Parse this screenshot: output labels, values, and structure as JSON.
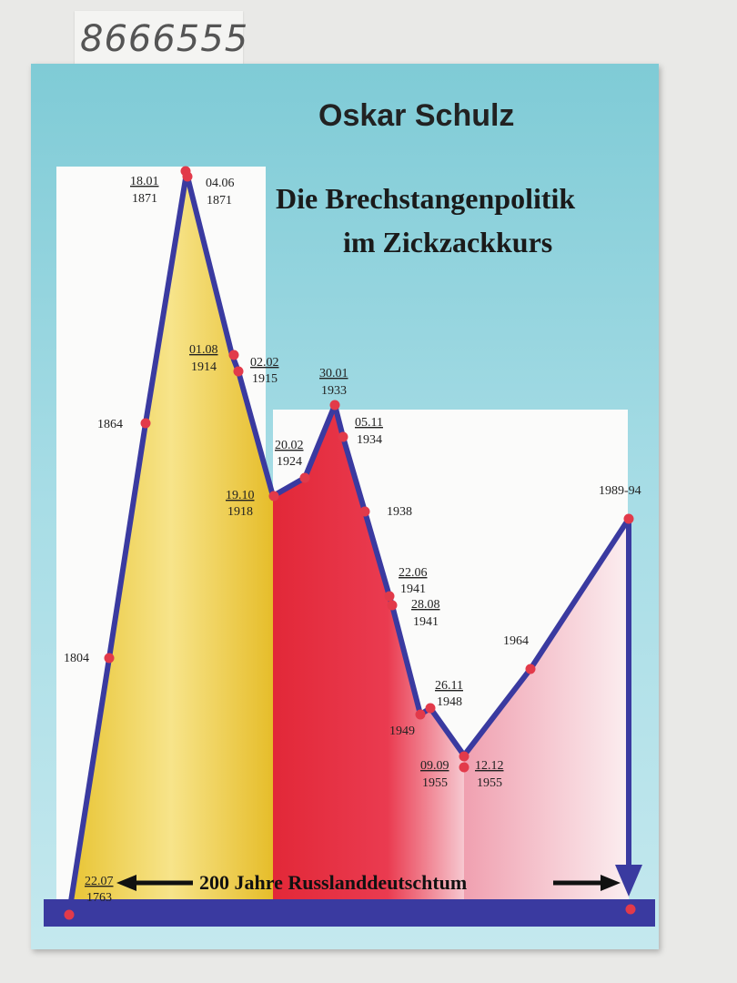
{
  "sticker": {
    "code": "8666555"
  },
  "cover": {
    "author": "Oskar Schulz",
    "title_line1": "Die Brechstangenpolitik",
    "title_line2": "im Zickzackkurs",
    "banner": "200 Jahre Russlanddeutschtum"
  },
  "labels": {
    "l_2207": "22.07",
    "l_1763": "1763",
    "l_1804": "1804",
    "l_1864": "1864",
    "l_1801": "18.01",
    "l_1871a": "1871",
    "l_0406": "04.06",
    "l_1871b": "1871",
    "l_0108": "01.08",
    "l_1914": "1914",
    "l_0202": "02.02",
    "l_1915": "1915",
    "l_1910": "19.10",
    "l_1918": "1918",
    "l_2002": "20.02",
    "l_1924": "1924",
    "l_3001": "30.01",
    "l_1933": "1933",
    "l_0511": "05.11",
    "l_1934": "1934",
    "l_1938": "1938",
    "l_2206": "22.06",
    "l_1941a": "1941",
    "l_2808": "28.08",
    "l_1941b": "1941",
    "l_2611": "26.11",
    "l_1948": "1948",
    "l_1949": "1949",
    "l_0909": "09.09",
    "l_1955a": "1955",
    "l_1212": "12.12",
    "l_1955b": "1955",
    "l_1964": "1964",
    "l_198994": "1989-94"
  },
  "colors": {
    "line": "#3a3aa0",
    "dot": "#e23a4a",
    "base": "#3a3aa0"
  }
}
